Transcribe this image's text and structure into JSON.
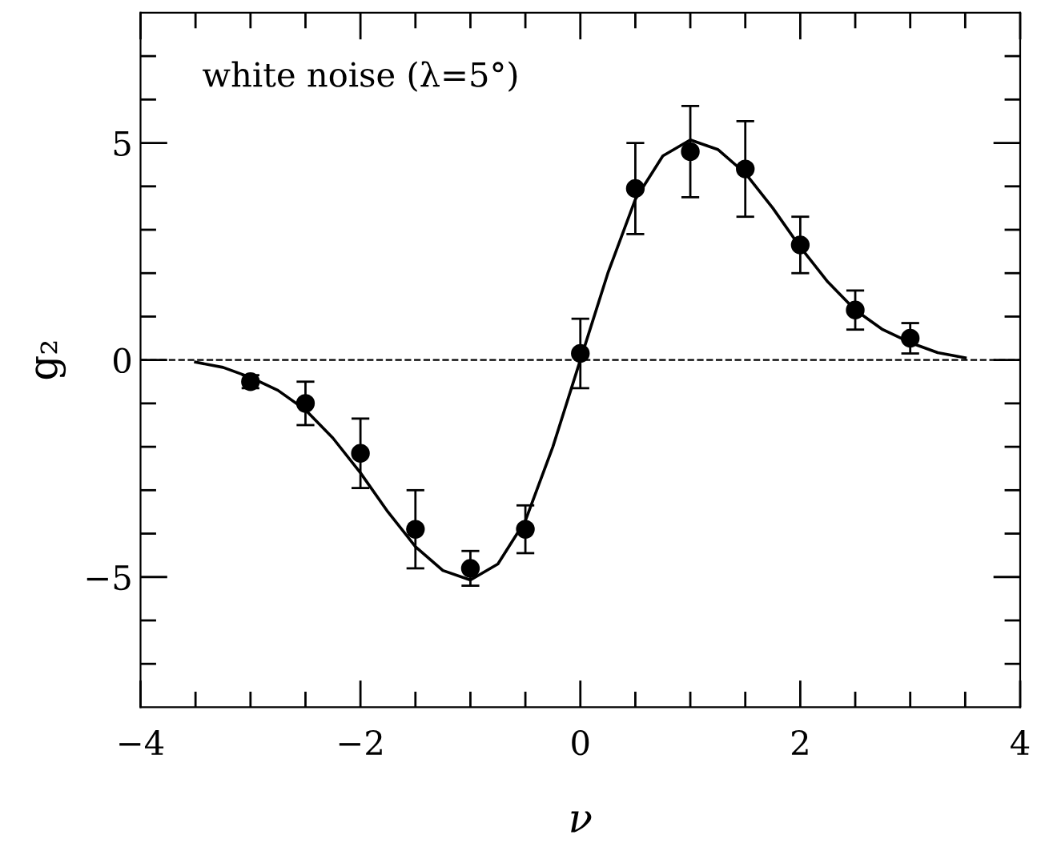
{
  "chart_data": {
    "type": "scatter",
    "xlabel": "ν",
    "ylabel": "g₂",
    "annotations": [
      "white noise (λ=5°)"
    ],
    "xlim": [
      -4,
      4
    ],
    "ylim": [
      -8,
      8
    ],
    "xticks": [
      -4,
      {
        "value": -3.5,
        "label": null
      },
      {
        "value": -3,
        "label": null
      },
      {
        "value": -2.5,
        "label": null
      },
      -2,
      {
        "value": -1.5,
        "label": null
      },
      {
        "value": -1,
        "label": null
      },
      {
        "value": -0.5,
        "label": null
      },
      0,
      {
        "value": 0.5,
        "label": null
      },
      {
        "value": 1,
        "label": null
      },
      {
        "value": 1.5,
        "label": null
      },
      2,
      {
        "value": 2.5,
        "label": null
      },
      {
        "value": 3,
        "label": null
      },
      {
        "value": 3.5,
        "label": null
      },
      4
    ],
    "yticks": [
      {
        "value": -7,
        "label": null
      },
      {
        "value": -6,
        "label": null
      },
      {
        "value": -5,
        "label": "−5"
      },
      {
        "value": -4,
        "label": null
      },
      {
        "value": -3,
        "label": null
      },
      {
        "value": -2,
        "label": null
      },
      {
        "value": -1,
        "label": null
      },
      0,
      {
        "value": 1,
        "label": null
      },
      {
        "value": 2,
        "label": null
      },
      {
        "value": 3,
        "label": null
      },
      {
        "value": 4,
        "label": null
      },
      5,
      {
        "value": 6,
        "label": null
      },
      {
        "value": 7,
        "label": null
      }
    ],
    "grid": false,
    "legend": false,
    "ref_lines": [
      {
        "axis": "y",
        "value": 0,
        "color": "#000000",
        "line_style": "dashed"
      }
    ],
    "series": [
      {
        "type": "line",
        "color": "#000000",
        "marker": "none",
        "line_style": "solid",
        "x": [
          -3.5,
          -3.25,
          -3,
          -2.75,
          -2.5,
          -2.25,
          -2,
          -1.75,
          -1.5,
          -1.25,
          -1,
          -0.75,
          -0.5,
          -0.25,
          0,
          0.25,
          0.5,
          0.75,
          1,
          1.25,
          1.5,
          1.75,
          2,
          2.25,
          2.5,
          2.75,
          3,
          3.25,
          3.5
        ],
        "values": [
          -0.05,
          -0.17,
          -0.4,
          -0.7,
          -1.15,
          -1.8,
          -2.6,
          -3.5,
          -4.3,
          -4.85,
          -5.07,
          -4.7,
          -3.7,
          -2.0,
          0,
          2.0,
          3.7,
          4.7,
          5.07,
          4.85,
          4.3,
          3.5,
          2.6,
          1.8,
          1.15,
          0.7,
          0.4,
          0.17,
          0.05
        ]
      },
      {
        "color": "#000000",
        "marker": "circle",
        "x": [
          -3,
          -2.5,
          -2,
          -1.5,
          -1,
          -0.5,
          0,
          0.5,
          1,
          1.5,
          2,
          2.5,
          3
        ],
        "values": [
          -0.5,
          -1.0,
          -2.15,
          -3.9,
          -4.8,
          -3.9,
          0.15,
          3.95,
          4.8,
          4.4,
          2.65,
          1.15,
          0.5
        ],
        "errors": [
          0.15,
          0.5,
          0.8,
          0.9,
          0.4,
          0.55,
          0.8,
          1.05,
          1.05,
          1.1,
          0.65,
          0.45,
          0.35
        ]
      }
    ]
  }
}
